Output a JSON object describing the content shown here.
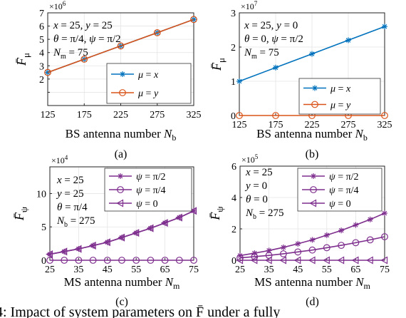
{
  "caption": "4: Impact of system parameters on F̄ under a fully",
  "chart_data": [
    {
      "id": "a",
      "type": "line",
      "label": "(a)",
      "xlabel": "BS antenna number",
      "xlabel_sym": "N",
      "xlabel_sub": "b",
      "ylabel_sym": "F̄",
      "ylabel_sub": "μ",
      "exponent_base": "×10",
      "exponent_power": "6",
      "x": [
        125,
        175,
        225,
        275,
        325
      ],
      "xlim": [
        125,
        325
      ],
      "ylim": [
        0,
        7
      ],
      "yticks": [
        0,
        1,
        2,
        3,
        4,
        5,
        6,
        7
      ],
      "yticklabels": [
        "",
        "",
        "2",
        "3",
        "4",
        "5",
        "6",
        "7"
      ],
      "grid": true,
      "legend_position": "bottom-right",
      "annotations": [
        "x = 25, y = 25",
        "θ = π/4, ψ = π/2",
        "Nm = 75"
      ],
      "series": [
        {
          "name": "μ = x",
          "color": "#0072BD",
          "marker": "star",
          "values": [
            2.5,
            3.5,
            4.5,
            5.5,
            6.5
          ]
        },
        {
          "name": "μ = y",
          "color": "#D95319",
          "marker": "circle",
          "values": [
            2.5,
            3.5,
            4.5,
            5.5,
            6.5
          ]
        }
      ]
    },
    {
      "id": "b",
      "type": "line",
      "label": "(b)",
      "xlabel": "BS antenna number",
      "xlabel_sym": "N",
      "xlabel_sub": "b",
      "ylabel_sym": "F̄",
      "ylabel_sub": "μ",
      "exponent_base": "×10",
      "exponent_power": "7",
      "x": [
        125,
        175,
        225,
        275,
        325
      ],
      "xlim": [
        125,
        325
      ],
      "ylim": [
        0,
        3
      ],
      "yticks": [
        0,
        1,
        2,
        3
      ],
      "yticklabels": [
        "0",
        "1",
        "2",
        "3"
      ],
      "grid": true,
      "legend_position": "bottom-right",
      "annotations": [
        "x = 25, y = 0",
        "θ = 0, ψ = π/2",
        "Nm = 75"
      ],
      "series": [
        {
          "name": "μ = x",
          "color": "#0072BD",
          "marker": "star",
          "values": [
            1.0,
            1.4,
            1.8,
            2.2,
            2.6
          ]
        },
        {
          "name": "μ = y",
          "color": "#D95319",
          "marker": "circle",
          "values": [
            0,
            0,
            0,
            0,
            0
          ]
        }
      ]
    },
    {
      "id": "c",
      "type": "line",
      "label": "(c)",
      "xlabel": "MS antenna number",
      "xlabel_sym": "N",
      "xlabel_sub": "m",
      "ylabel_sym": "F̄",
      "ylabel_sub": "ψ",
      "exponent_base": "×10",
      "exponent_power": "4",
      "x": [
        25,
        30,
        35,
        40,
        45,
        50,
        55,
        60,
        65,
        70,
        75
      ],
      "xticks": [
        25,
        35,
        45,
        55,
        65,
        75
      ],
      "xlim": [
        25,
        75
      ],
      "ylim": [
        0,
        14
      ],
      "yticks": [
        0,
        5,
        10
      ],
      "yticklabels": [
        "0",
        "5",
        "10"
      ],
      "grid": true,
      "legend_position": "top-right",
      "annotations": [
        "x = 25",
        "y = 25",
        "θ = π/4",
        "Nb = 275"
      ],
      "series": [
        {
          "name": "ψ = π/2",
          "color": "#7E2F8E",
          "marker": "star",
          "values": [
            0.9,
            1.3,
            1.7,
            2.2,
            2.7,
            3.4,
            4.1,
            4.8,
            5.6,
            6.4,
            7.4
          ]
        },
        {
          "name": "ψ = π/4",
          "color": "#7E2F8E",
          "marker": "circle",
          "values": [
            0,
            0,
            0,
            0,
            0,
            0,
            0,
            0,
            0,
            0,
            0
          ]
        },
        {
          "name": "ψ = 0",
          "color": "#7E2F8E",
          "marker": "triangle-left",
          "values": [
            0.9,
            1.3,
            1.7,
            2.2,
            2.7,
            3.4,
            4.1,
            4.8,
            5.6,
            6.4,
            7.4
          ]
        }
      ]
    },
    {
      "id": "d",
      "type": "line",
      "label": "(d)",
      "xlabel": "MS antenna number",
      "xlabel_sym": "N",
      "xlabel_sub": "m",
      "ylabel_sym": "F̄",
      "ylabel_sub": "ψ",
      "exponent_base": "×10",
      "exponent_power": "5",
      "x": [
        25,
        30,
        35,
        40,
        45,
        50,
        55,
        60,
        65,
        70,
        75
      ],
      "xticks": [
        25,
        35,
        45,
        55,
        65,
        75
      ],
      "xlim": [
        25,
        75
      ],
      "ylim": [
        0,
        6
      ],
      "yticks": [
        0,
        2,
        4,
        6
      ],
      "yticklabels": [
        "0",
        "2",
        "4",
        "6"
      ],
      "grid": true,
      "legend_position": "top-right",
      "annotations": [
        "x = 25",
        "y = 0",
        "θ = 0",
        "Nb = 275"
      ],
      "series": [
        {
          "name": "ψ = π/2",
          "color": "#7E2F8E",
          "marker": "star",
          "values": [
            0.3,
            0.45,
            0.62,
            0.82,
            1.05,
            1.3,
            1.6,
            1.9,
            2.25,
            2.6,
            3.0
          ]
        },
        {
          "name": "ψ = π/4",
          "color": "#7E2F8E",
          "marker": "circle",
          "values": [
            0.15,
            0.23,
            0.31,
            0.41,
            0.53,
            0.65,
            0.8,
            0.95,
            1.12,
            1.3,
            1.5
          ]
        },
        {
          "name": "ψ = 0",
          "color": "#7E2F8E",
          "marker": "triangle-left",
          "values": [
            0,
            0,
            0,
            0,
            0,
            0,
            0,
            0,
            0,
            0,
            0
          ]
        }
      ]
    }
  ]
}
